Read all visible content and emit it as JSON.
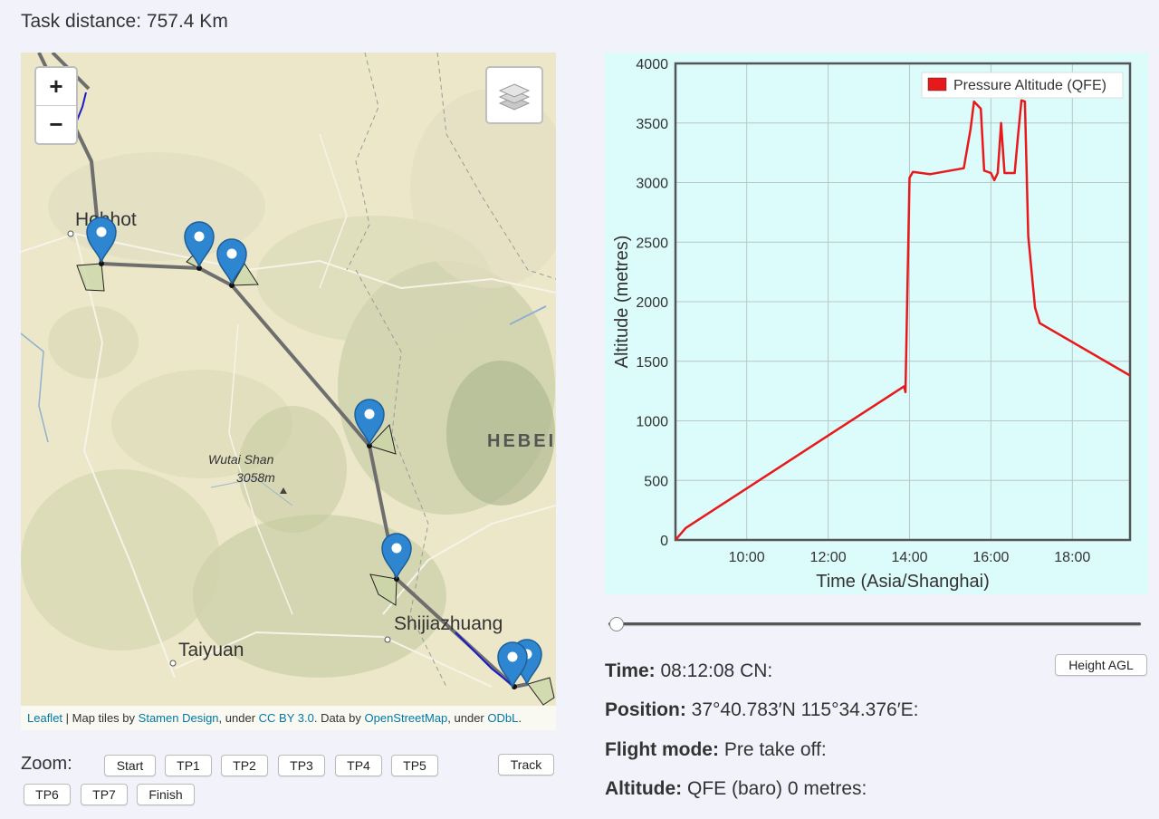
{
  "task": {
    "label": "Task distance:",
    "value": "757.4 Km"
  },
  "map": {
    "zoom_in": "+",
    "zoom_out": "−",
    "places": {
      "hohhot": "Hohhot",
      "hebei": "HEBEI",
      "wutai_name": "Wutai Shan",
      "wutai_elev": "3058m",
      "shijiazhuang": "Shijiazhuang",
      "taiyuan": "Taiyuan"
    },
    "attribution": {
      "leaflet": "Leaflet",
      "tiles_prefix": "| Map tiles by",
      "stamen": "Stamen Design",
      "under1": ", under",
      "ccby": "CC BY 3.0",
      "data_by": ". Data by",
      "osm": "OpenStreetMap",
      "under2": ", under",
      "odbl": "ODbL",
      "period": "."
    },
    "colors": {
      "task_line": "#6e6e6e",
      "track": "#1a1acc",
      "pin": "#2e86d0",
      "sector": "#c8d4a4"
    }
  },
  "zoom_controls": {
    "label": "Zoom:",
    "buttons": [
      "Start",
      "TP1",
      "TP2",
      "TP3",
      "TP4",
      "TP5",
      "TP6",
      "TP7",
      "Finish"
    ],
    "track": "Track"
  },
  "chart_data": {
    "type": "line",
    "xlabel": "Time (Asia/Shanghai)",
    "ylabel": "Altitude (metres)",
    "x_ticks": [
      "10:00",
      "12:00",
      "14:00",
      "16:00",
      "18:00"
    ],
    "y_ticks": [
      "0",
      "500",
      "1000",
      "1500",
      "2000",
      "2500",
      "3000",
      "3500",
      "4000"
    ],
    "xlim": [
      "08:15",
      "19:25"
    ],
    "ylim": [
      0,
      4000
    ],
    "grid": true,
    "legend_position": "top-right",
    "background": "#dcfbfb",
    "series": [
      {
        "name": "Pressure Altitude (QFE)",
        "color": "#e8191b",
        "points": [
          [
            "08:15",
            0
          ],
          [
            "08:30",
            100
          ],
          [
            "13:52",
            1290
          ],
          [
            "13:54",
            1240
          ],
          [
            "14:00",
            3040
          ],
          [
            "14:05",
            3090
          ],
          [
            "14:30",
            3070
          ],
          [
            "15:00",
            3100
          ],
          [
            "15:20",
            3120
          ],
          [
            "15:30",
            3450
          ],
          [
            "15:35",
            3680
          ],
          [
            "15:45",
            3620
          ],
          [
            "15:50",
            3100
          ],
          [
            "16:00",
            3080
          ],
          [
            "16:05",
            3020
          ],
          [
            "16:10",
            3080
          ],
          [
            "16:15",
            3500
          ],
          [
            "16:20",
            3080
          ],
          [
            "16:35",
            3080
          ],
          [
            "16:40",
            3400
          ],
          [
            "16:45",
            3690
          ],
          [
            "16:50",
            3680
          ],
          [
            "16:55",
            2550
          ],
          [
            "17:05",
            1950
          ],
          [
            "17:12",
            1820
          ],
          [
            "19:25",
            1380
          ]
        ]
      }
    ]
  },
  "slider": {
    "value": 0
  },
  "height_agl": "Height AGL",
  "info": {
    "time_label": "Time:",
    "time_value": "08:12:08 CN:",
    "position_label": "Position:",
    "position_value": "37°40.783′N 115°34.376′E:",
    "mode_label": "Flight mode:",
    "mode_value": "Pre take off:",
    "altitude_label": "Altitude:",
    "altitude_value": "QFE (baro) 0 metres:"
  }
}
